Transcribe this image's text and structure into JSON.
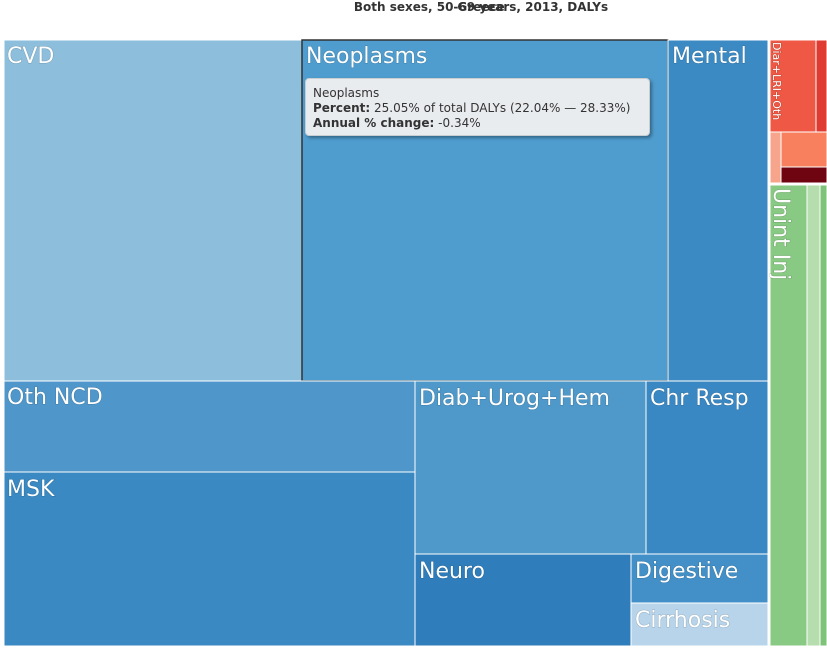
{
  "header": {
    "title": "Greece",
    "subtitle": "Both sexes, 50-69 years, 2013, DALYs"
  },
  "tooltip": {
    "name": "Neoplasms",
    "percent_label": "Percent:",
    "percent_value": "25.05% of total DALYs (22.04% — 28.33%)",
    "change_label": "Annual % change:",
    "change_value": "-0.34%"
  },
  "chart_data": {
    "type": "treemap",
    "title": "Greece",
    "subtitle": "Both sexes, 50-69 years, 2013, DALYs",
    "hovered": "Neoplasms",
    "cells": [
      {
        "label": "CVD",
        "color": "#8dbfdd"
      },
      {
        "label": "Neoplasms",
        "color": "#4f9dcf",
        "percent": 25.05,
        "ci": [
          22.04,
          28.33
        ],
        "annual_change": -0.34
      },
      {
        "label": "Mental",
        "color": "#3c8ac4"
      },
      {
        "label": "Oth NCD",
        "color": "#4f97cb"
      },
      {
        "label": "MSK",
        "color": "#3a89c3"
      },
      {
        "label": "Diab+Urog+Hem",
        "color": "#4e98ca"
      },
      {
        "label": "Chr Resp",
        "color": "#3a88c3"
      },
      {
        "label": "Neuro",
        "color": "#2f7dbb"
      },
      {
        "label": "Digestive",
        "color": "#4390c8"
      },
      {
        "label": "Cirrhosis",
        "color": "#b7d4ea"
      },
      {
        "label": "Diar+LRI+Oth",
        "color": "#ee5844"
      },
      {
        "label": "Unint Inj",
        "color": "#88c983"
      }
    ]
  }
}
